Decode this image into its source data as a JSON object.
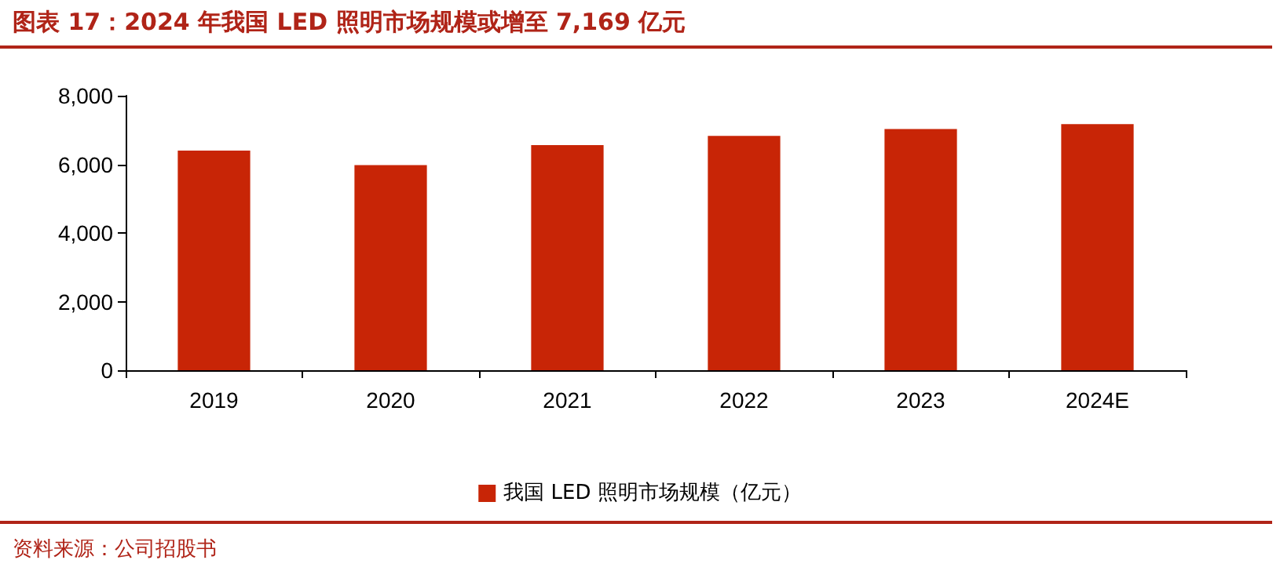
{
  "chart_data": {
    "type": "bar",
    "title": "图表 17：2024 年我国 LED 照明市场规模或增至 7,169 亿元",
    "categories": [
      "2019",
      "2020",
      "2021",
      "2022",
      "2023",
      "2024E"
    ],
    "series": [
      {
        "name": "我国 LED 照明市场规模（亿元）",
        "color": "#c82506",
        "values": [
          6400,
          5980,
          6560,
          6830,
          7030,
          7169
        ]
      }
    ],
    "ylim": [
      0,
      8000
    ],
    "yticks": [
      {
        "value": 0,
        "label": "0"
      },
      {
        "value": 2000,
        "label": "2,000"
      },
      {
        "value": 4000,
        "label": "4,000"
      },
      {
        "value": 6000,
        "label": "6,000"
      },
      {
        "value": 8000,
        "label": "8,000"
      }
    ],
    "grid": false,
    "legend": "bottom",
    "annotations": [
      "资料来源：公司招股书"
    ]
  }
}
